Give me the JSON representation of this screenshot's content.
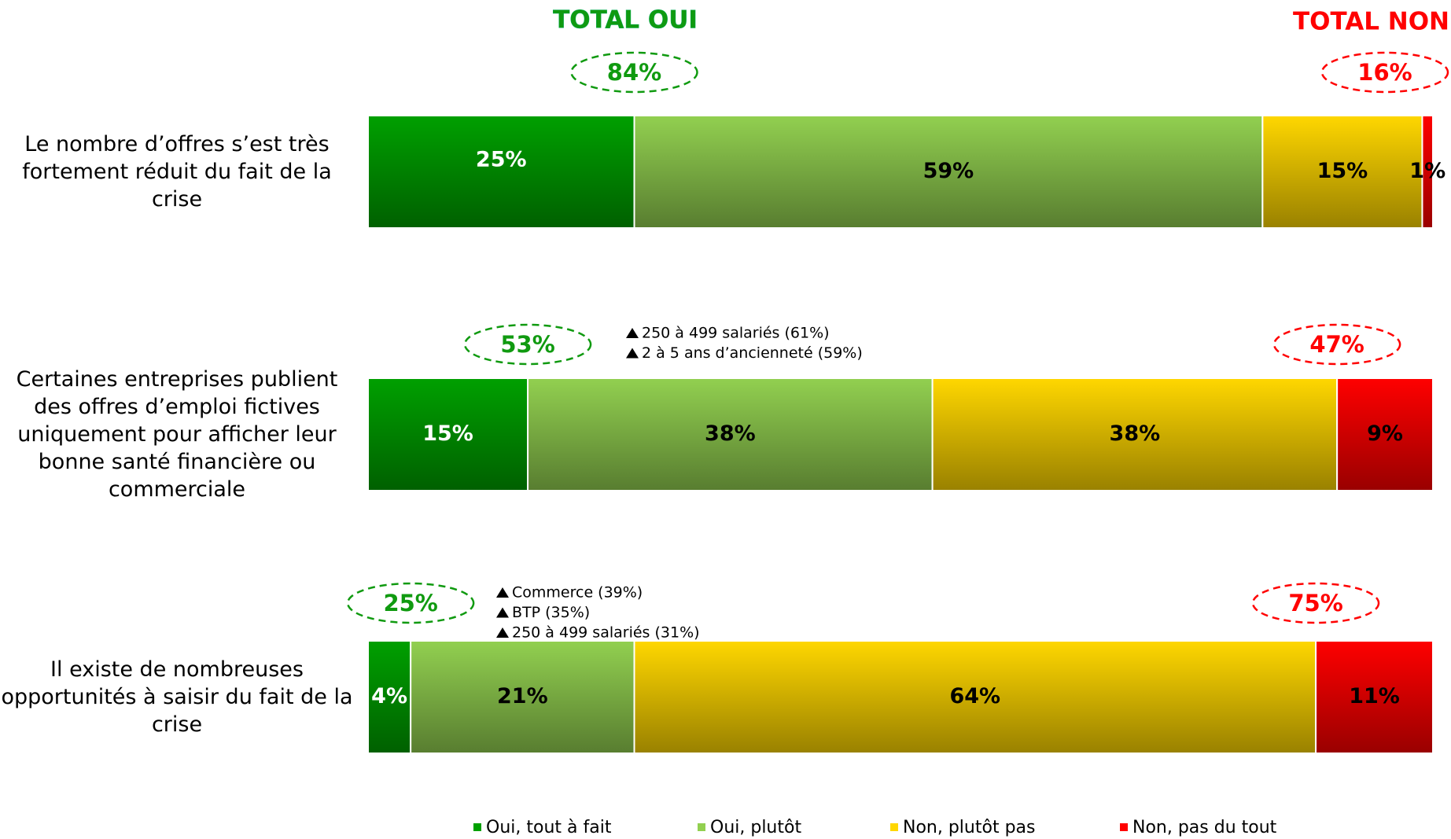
{
  "chart_data": {
    "type": "stacked-bar-horizontal",
    "categories": [
      "Le nombre d’offres s’est très fortement réduit du fait de la crise",
      "Certaines entreprises publient des offres d’emploi fictives uniquement pour afficher leur bonne santé financière ou commerciale",
      "Il existe de nombreuses opportunités à saisir du fait de la crise"
    ],
    "series": [
      {
        "name": "Oui, tout à fait",
        "color": "#00a000",
        "label_color": "#ffffff",
        "values": [
          25,
          15,
          4
        ],
        "value_labels": [
          "25%",
          "15%",
          "4%"
        ]
      },
      {
        "name": "Oui, plutôt",
        "color": "#92d050",
        "label_color": "#000000",
        "values": [
          59,
          38,
          21
        ],
        "value_labels": [
          "59%",
          "38%",
          "21%"
        ]
      },
      {
        "name": "Non, plutôt pas",
        "color": "#ffd700",
        "label_color": "#000000",
        "values": [
          15,
          38,
          64
        ],
        "value_labels": [
          "15%",
          "38%",
          "64%"
        ]
      },
      {
        "name": "Non, pas du tout",
        "color": "#ff0000",
        "label_color": "#000000",
        "values": [
          1,
          9,
          11
        ],
        "value_labels": [
          "1%",
          "9%",
          "11%"
        ]
      }
    ],
    "xlim": [
      0,
      100
    ],
    "totals": [
      {
        "name": "TOTAL OUI",
        "color": "#109a10",
        "values": [
          84,
          53,
          25
        ],
        "value_labels": [
          "84%",
          "53%",
          "25%"
        ]
      },
      {
        "name": "TOTAL NON",
        "color": "#ff0000",
        "values": [
          16,
          47,
          75
        ],
        "value_labels": [
          "16%",
          "47%",
          "75%"
        ]
      }
    ],
    "annotations": [
      [],
      [
        "250 à 499 salariés (61%)",
        "2 à 5 ans d’ancienneté (59%)"
      ],
      [
        "Commerce (39%)",
        "BTP (35%)",
        "250 à 499 salariés (31%)"
      ]
    ]
  }
}
